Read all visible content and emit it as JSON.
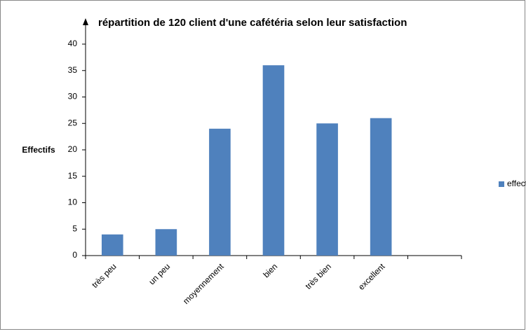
{
  "chart_data": {
    "type": "bar",
    "title": "répartition de 120 client d'une cafétéria selon leur satisfaction",
    "y_label": "Effectifs",
    "categories": [
      "très peu",
      "un peu",
      "moyennement",
      "bien",
      "très bien",
      "excellent",
      null
    ],
    "series": [
      {
        "name": "effectif",
        "color": "#4f81bd",
        "values": [
          4,
          5,
          24,
          36,
          25,
          26,
          null
        ]
      }
    ],
    "ylim": [
      0,
      40
    ],
    "yticks": [
      0,
      5,
      10,
      15,
      20,
      25,
      30,
      35,
      40
    ],
    "grid": false,
    "legend": "right"
  }
}
